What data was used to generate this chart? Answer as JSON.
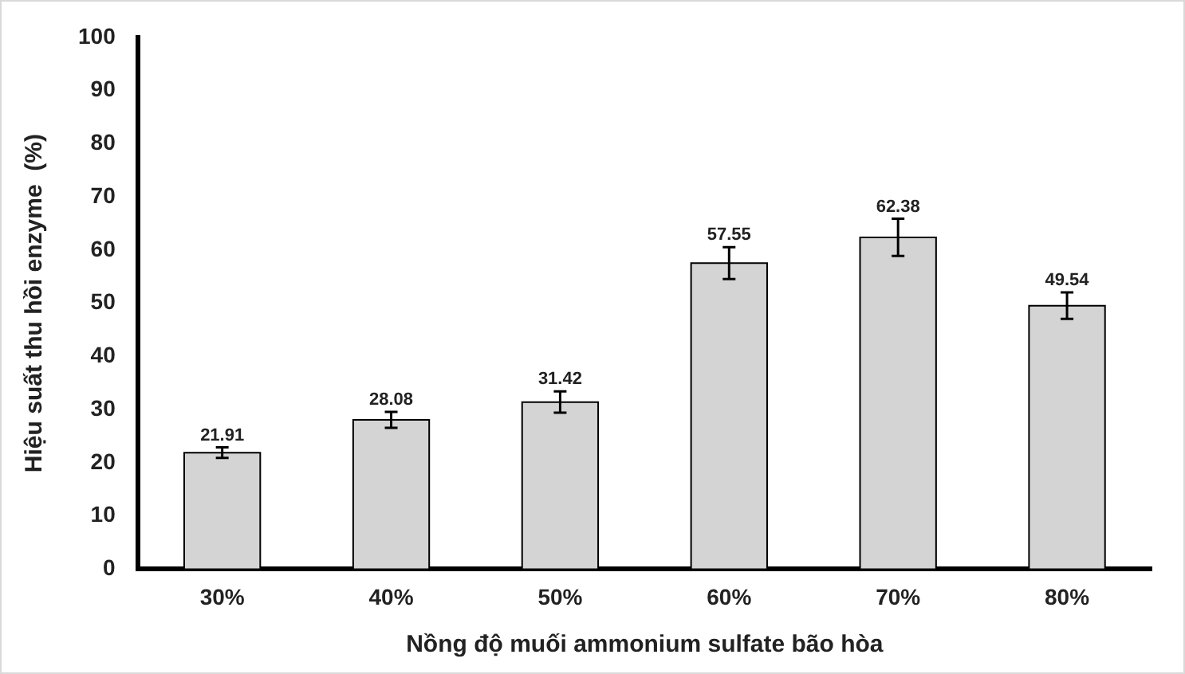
{
  "chart_data": {
    "type": "bar",
    "xlabel": "Nồng độ muối ammonium sulfate bão hòa",
    "ylabel": "Hiệu suất thu hồi enzyme  (%)",
    "categories": [
      "30%",
      "40%",
      "50%",
      "60%",
      "70%",
      "80%"
    ],
    "values": [
      21.91,
      28.08,
      31.42,
      57.55,
      62.38,
      49.54
    ],
    "errors": [
      1,
      1.5,
      2,
      3,
      3.5,
      2.5
    ],
    "color": "#d4d4d4",
    "ylim": [
      0,
      100
    ],
    "yticks": [
      0,
      10,
      20,
      30,
      40,
      50,
      60,
      70,
      80,
      90,
      100
    ],
    "grid": false,
    "legend": false,
    "data_labels": true
  }
}
